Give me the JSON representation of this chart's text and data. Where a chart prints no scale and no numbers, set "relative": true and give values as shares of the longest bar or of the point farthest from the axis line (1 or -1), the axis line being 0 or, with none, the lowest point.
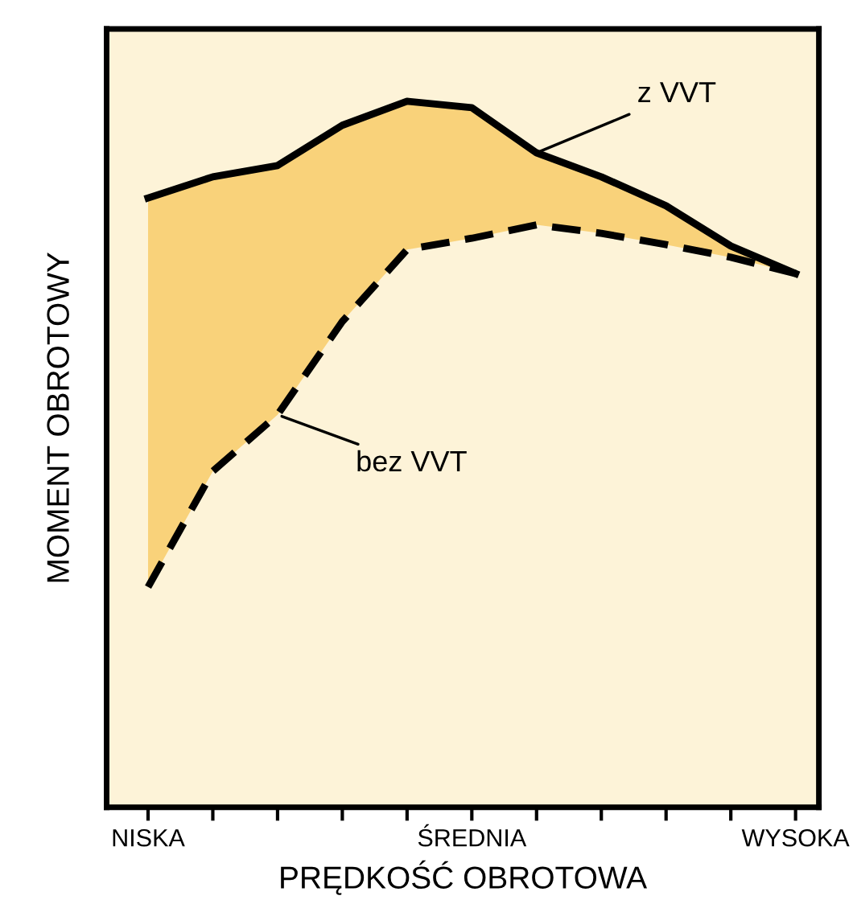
{
  "chart_data": {
    "type": "line",
    "relative": true,
    "xlabel": "PRĘDKOŚĆ OBROTOWA",
    "ylabel": "MOMENT OBROTOWY",
    "categories": [
      "NISKA",
      null,
      null,
      null,
      null,
      "ŚREDNIA",
      null,
      null,
      null,
      null,
      "WYSOKA"
    ],
    "series": [
      {
        "name": "z VVT",
        "color": "#000000",
        "line_style": "solid",
        "values": [
          0.863,
          0.893,
          0.909,
          0.966,
          1.0,
          0.991,
          0.927,
          0.893,
          0.852,
          0.795,
          0.756
        ],
        "lower": [
          0.312,
          0.476,
          0.556,
          0.688,
          0.79,
          0.806,
          0.825,
          0.813,
          0.797,
          0.779,
          0.756
        ],
        "upper": [
          0.863,
          0.893,
          0.909,
          0.966,
          1.0,
          0.991,
          0.927,
          0.893,
          0.852,
          0.795,
          0.756
        ]
      },
      {
        "name": "bez VVT",
        "color": "#000000",
        "line_style": "dashed",
        "values": [
          0.312,
          0.476,
          0.556,
          0.688,
          0.79,
          0.806,
          0.825,
          0.813,
          0.797,
          0.779,
          0.756
        ]
      }
    ],
    "grid": false,
    "legend": false,
    "marker": "none"
  }
}
